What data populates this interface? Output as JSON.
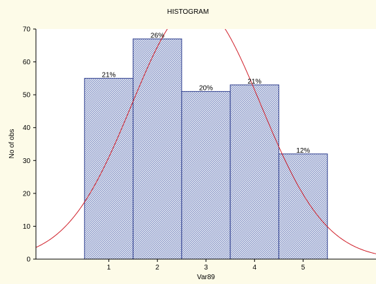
{
  "chart_data": {
    "type": "bar",
    "title": "HISTOGRAM",
    "xlabel": "Var89",
    "ylabel": "No of obs",
    "categories": [
      "1",
      "2",
      "3",
      "4",
      "5"
    ],
    "values": [
      55,
      67,
      51,
      53,
      32
    ],
    "data_labels": [
      "21%",
      "26%",
      "20%",
      "21%",
      "12%"
    ],
    "ylim": [
      0,
      70
    ],
    "yticks": [
      0,
      10,
      20,
      30,
      40,
      50,
      60,
      70
    ],
    "xlim": [
      -0.5,
      6.5
    ],
    "grid": false,
    "fitted_curve": {
      "type": "normal",
      "mean": 2.8,
      "sd": 1.33,
      "scale": 258
    },
    "colors": {
      "background": "#fdfbe8",
      "plot_background": "#ffffff",
      "bar_fill": "#dbe0ee",
      "bar_hatch": "#7d8cc2",
      "bar_stroke": "#2f3f8f",
      "curve": "#d0202a"
    }
  }
}
